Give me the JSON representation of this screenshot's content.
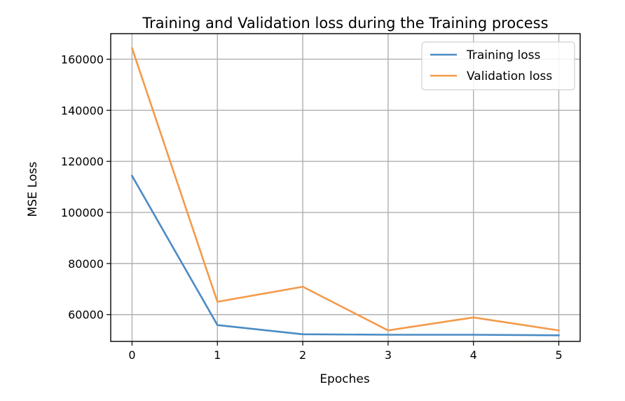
{
  "chart_data": {
    "type": "line",
    "title": "Training and Validation loss during the Training process",
    "xlabel": "Epoches",
    "ylabel": "MSE Loss",
    "x": [
      0,
      1,
      2,
      3,
      4,
      5
    ],
    "xlim": [
      -0.25,
      5.25
    ],
    "ylim": [
      49500,
      170000
    ],
    "xticks": [
      0,
      1,
      2,
      3,
      4,
      5
    ],
    "xtick_labels": [
      "0",
      "1",
      "2",
      "3",
      "4",
      "5"
    ],
    "yticks": [
      60000,
      80000,
      100000,
      120000,
      140000,
      160000
    ],
    "ytick_labels": [
      "60000",
      "80000",
      "100000",
      "120000",
      "140000",
      "160000"
    ],
    "grid": true,
    "legend_position": "top-right",
    "series": [
      {
        "name": "Training loss",
        "color": "#4a8bc4",
        "values": [
          114300,
          55900,
          52300,
          52100,
          52100,
          51900
        ]
      },
      {
        "name": "Validation loss",
        "color": "#f39a4a",
        "values": [
          164300,
          65000,
          70900,
          53800,
          58900,
          53800
        ]
      }
    ]
  }
}
